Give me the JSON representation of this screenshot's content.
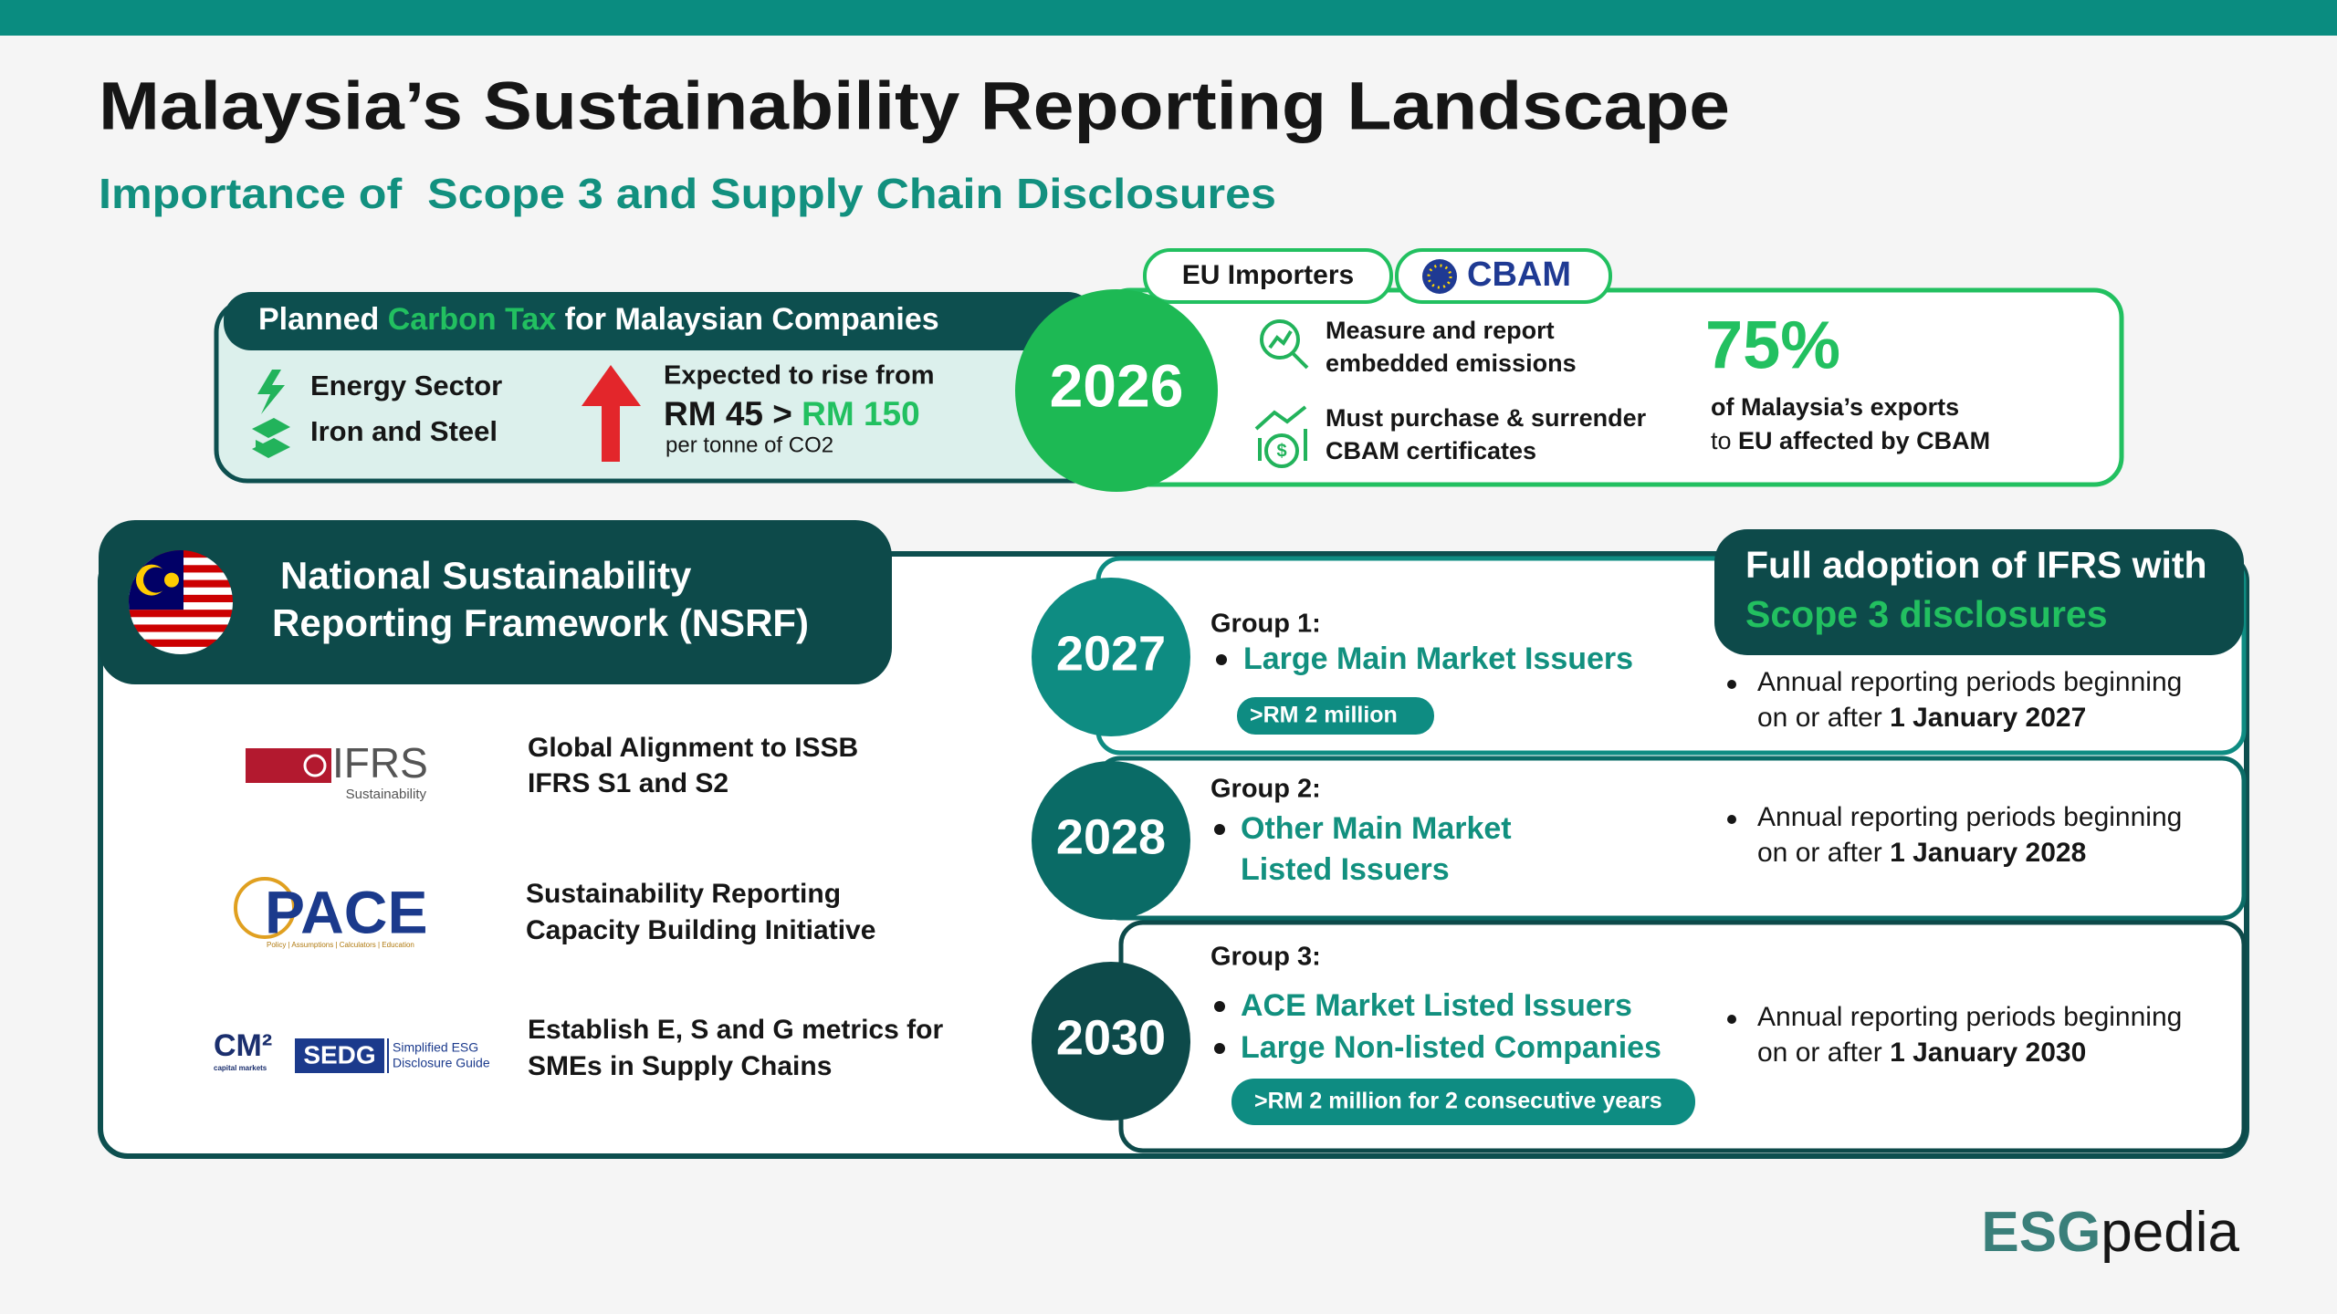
{
  "header": {
    "title": "Malaysia’s Sustainability Reporting Landscape",
    "subtitle": "Importance of  Scope 3 and Supply Chain Disclosures"
  },
  "carbon_tax": {
    "heading_pre": "Planned",
    "heading_highlight": "Carbon Tax",
    "heading_post": "for Malaysian Companies",
    "sectors": [
      "Energy Sector",
      "Iron and Steel"
    ],
    "rise_label": "Expected to rise from",
    "price_from": "RM 45",
    "price_arrow": ">",
    "price_to": "RM 150",
    "unit": "per tonne of CO2"
  },
  "year_badge": "2026",
  "cbam": {
    "tabs": [
      "EU Importers",
      "CBAM"
    ],
    "requirements": [
      [
        "Measure and report",
        "embedded emissions"
      ],
      [
        "Must purchase & surrender",
        "CBAM certificates"
      ]
    ],
    "stat": "75%",
    "stat_line1": "of Malaysia’s exports",
    "stat_line2_pre": "to",
    "stat_line2_bold": "EU affected by CBAM"
  },
  "nsrf": {
    "title": [
      "National Sustainability",
      "Reporting Framework (NSRF)"
    ],
    "initiatives": [
      {
        "logo": "IFRS",
        "logo_sub": "Sustainability",
        "text": [
          "Global Alignment to ISSB",
          "IFRS S1 and S2"
        ]
      },
      {
        "logo": "PACE",
        "logo_sub": "Policy | Assumptions | Calculators | Education",
        "text": [
          "Sustainability Reporting",
          "Capacity Building Initiative"
        ]
      },
      {
        "logo": "CM²",
        "logo_sub": "capital markets",
        "logo2": "SEDG",
        "logo2_sub": [
          "Simplified ESG",
          "Disclosure Guide"
        ],
        "text": [
          "Establish E, S and G metrics for",
          "SMEs in Supply Chains"
        ]
      }
    ]
  },
  "timeline": {
    "heading": "Full adoption of IFRS with",
    "heading_highlight": "Scope 3 disclosures",
    "groups": [
      {
        "year": "2027",
        "group": "Group 1:",
        "issuers": [
          "Large Main Market Issuers"
        ],
        "threshold": ">RM 2 million",
        "period": [
          "Annual reporting periods beginning",
          "on or after"
        ],
        "date": "1 January 2027"
      },
      {
        "year": "2028",
        "group": "Group 2:",
        "issuers": [
          "Other Main Market",
          "Listed Issuers"
        ],
        "period": [
          "Annual reporting periods beginning",
          "on or after"
        ],
        "date": "1 January 2028"
      },
      {
        "year": "2030",
        "group": "Group 3:",
        "issuers": [
          "ACE Market Listed Issuers",
          "Large Non-listed Companies"
        ],
        "threshold": ">RM 2 million for 2 consecutive years",
        "period": [
          "Annual reporting periods beginning",
          "on or after"
        ],
        "date": "1 January 2030"
      }
    ]
  },
  "footer": {
    "brand_a": "ESG",
    "brand_b": "pedia"
  }
}
